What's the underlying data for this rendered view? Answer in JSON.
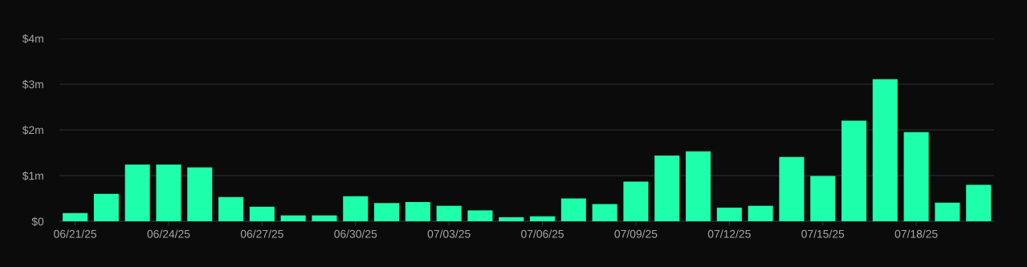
{
  "chart_data": {
    "type": "bar",
    "categories": [
      "06/21/25",
      null,
      null,
      "06/24/25",
      null,
      null,
      "06/27/25",
      null,
      null,
      "06/30/25",
      null,
      null,
      "07/03/25",
      null,
      null,
      "07/06/25",
      null,
      null,
      "07/09/25",
      null,
      null,
      "07/12/25",
      null,
      null,
      "07/15/25",
      null,
      null,
      "07/18/25",
      null,
      null
    ],
    "values": [
      0.18,
      0.6,
      1.24,
      1.24,
      1.18,
      0.53,
      0.32,
      0.13,
      0.13,
      0.55,
      0.4,
      0.42,
      0.34,
      0.24,
      0.09,
      0.11,
      0.5,
      0.38,
      0.87,
      1.44,
      1.53,
      0.3,
      0.34,
      1.41,
      0.99,
      2.2,
      3.11,
      1.95,
      0.41,
      0.8
    ],
    "color": "#1effac",
    "ylim": [
      0,
      4
    ],
    "yticks": [
      {
        "value": 0,
        "label": "$0"
      },
      {
        "value": 1,
        "label": "$1m"
      },
      {
        "value": 2,
        "label": "$2m"
      },
      {
        "value": 3,
        "label": "$3m"
      },
      {
        "value": 4,
        "label": "$4m"
      }
    ],
    "grid": "y"
  }
}
